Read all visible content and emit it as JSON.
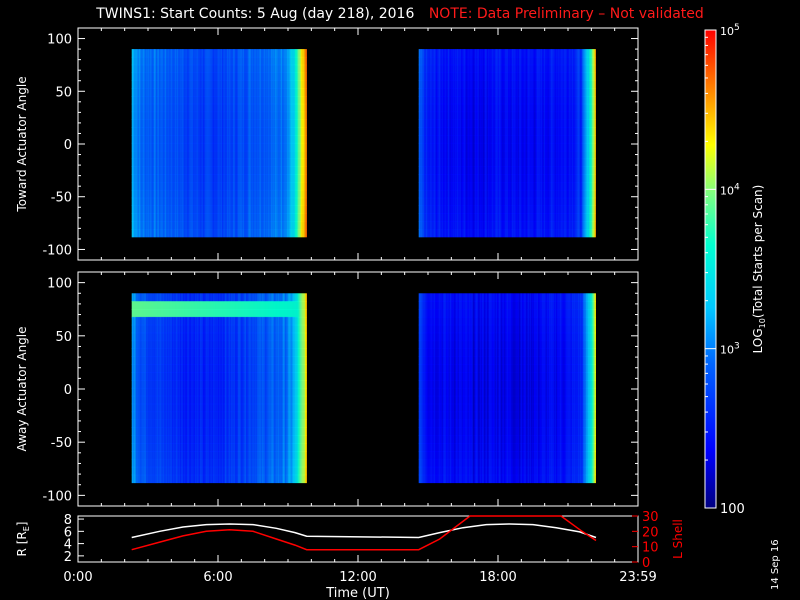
{
  "title": {
    "main": "TWINS1: Start Counts:  5 Aug (day 218), 2016",
    "note": "NOTE: Data Preliminary – Not validated"
  },
  "stamp": "14 Sep 16",
  "colors": {
    "background": "#000000",
    "frame": "#ffffff",
    "note": "#ff1a1a",
    "l_shell": "#ff0000",
    "r_trace": "#ffffff"
  },
  "chart_data": [
    {
      "type": "heatmap",
      "panel": "toward",
      "ylabel": "Toward Actuator Angle",
      "ylim": [
        -110,
        110
      ],
      "yticks": [
        -100,
        -50,
        0,
        50,
        100
      ],
      "xlim": [
        0,
        24
      ],
      "data_ranges_hours": [
        [
          2.3,
          9.8
        ],
        [
          14.6,
          22.2
        ]
      ],
      "angle_range": [
        -88,
        90
      ],
      "log10_level_profile": {
        "note": "approximate log10 counts at each time (hour)",
        "hours": [
          2.3,
          2.7,
          3.5,
          4.5,
          5.5,
          6.5,
          7.5,
          8.5,
          9.0,
          9.3,
          9.6,
          9.8,
          14.6,
          15.0,
          16.0,
          17.0,
          18.0,
          19.0,
          20.0,
          21.0,
          21.6,
          22.0,
          22.2
        ],
        "values": [
          3.3,
          3.0,
          2.95,
          2.85,
          2.75,
          2.8,
          2.95,
          3.0,
          3.15,
          3.5,
          4.3,
          4.7,
          2.9,
          2.55,
          2.5,
          2.45,
          2.5,
          2.45,
          2.5,
          2.55,
          2.7,
          3.8,
          4.5
        ]
      }
    },
    {
      "type": "heatmap",
      "panel": "away",
      "ylabel": "Away Actuator Angle",
      "ylim": [
        -110,
        110
      ],
      "yticks": [
        -100,
        -50,
        0,
        50,
        100
      ],
      "xlim": [
        0,
        24
      ],
      "data_ranges_hours": [
        [
          2.3,
          9.8
        ],
        [
          14.6,
          22.2
        ]
      ],
      "angle_range": [
        -88,
        90
      ],
      "enhanced_band": {
        "angle_from": 65,
        "angle_to": 85,
        "log10_level": 3.9
      },
      "log10_level_profile": {
        "hours": [
          2.3,
          2.7,
          3.5,
          4.5,
          5.5,
          6.5,
          7.5,
          8.5,
          9.0,
          9.3,
          9.6,
          9.8,
          14.6,
          15.0,
          16.0,
          17.0,
          18.0,
          19.0,
          20.0,
          21.0,
          21.6,
          22.0,
          22.2
        ],
        "values": [
          3.2,
          2.9,
          2.75,
          2.65,
          2.6,
          2.7,
          2.85,
          2.95,
          3.05,
          3.3,
          4.0,
          4.4,
          2.85,
          2.5,
          2.45,
          2.4,
          2.45,
          2.4,
          2.45,
          2.5,
          2.65,
          3.6,
          4.3
        ]
      }
    },
    {
      "type": "line",
      "panel": "orbit",
      "ylabel": "R [R",
      "ylabel_sub": "E",
      "ylabel_end": "]",
      "y2label": "L Shell",
      "ylim": [
        1,
        8.5
      ],
      "yticks": [
        2,
        4,
        6,
        8
      ],
      "y2lim": [
        0,
        30
      ],
      "y2ticks": [
        0,
        10,
        20,
        30
      ],
      "xlim": [
        0,
        24
      ],
      "xticks": [
        "0:00",
        "6:00",
        "12:00",
        "18:00",
        "23:59"
      ],
      "xlabel": "Time (UT)",
      "series": [
        {
          "name": "R",
          "axis": "left",
          "x": [
            2.3,
            3.5,
            4.5,
            5.5,
            6.5,
            7.5,
            8.5,
            9.3,
            9.8,
            14.6,
            15.5,
            16.5,
            17.5,
            18.5,
            19.5,
            20.5,
            21.5,
            22.2
          ],
          "y": [
            5.0,
            6.0,
            6.7,
            7.1,
            7.2,
            7.1,
            6.5,
            5.8,
            5.2,
            5.0,
            5.8,
            6.6,
            7.1,
            7.2,
            7.1,
            6.6,
            5.9,
            5.0
          ]
        },
        {
          "name": "L Shell",
          "axis": "right",
          "x": [
            2.3,
            3.5,
            4.5,
            5.5,
            6.5,
            7.5,
            8.5,
            9.3,
            9.8,
            14.6,
            15.5,
            16.8,
            20.7,
            21.6,
            22.2
          ],
          "y": [
            8,
            13,
            17,
            20,
            21,
            20,
            15,
            11,
            8,
            8,
            15,
            30,
            30,
            20,
            14
          ]
        }
      ]
    }
  ],
  "colorbar": {
    "label_prefix": "LOG",
    "label_sub": "10",
    "label_suffix": "(Total Starts per Scan)",
    "log_range": [
      2,
      5
    ],
    "ticks": [
      {
        "base": "10",
        "exp": "5",
        "log": 5
      },
      {
        "base": "10",
        "exp": "4",
        "log": 4
      },
      {
        "base": "10",
        "exp": "3",
        "log": 3
      },
      {
        "base": "100",
        "exp": "",
        "log": 2
      }
    ]
  }
}
